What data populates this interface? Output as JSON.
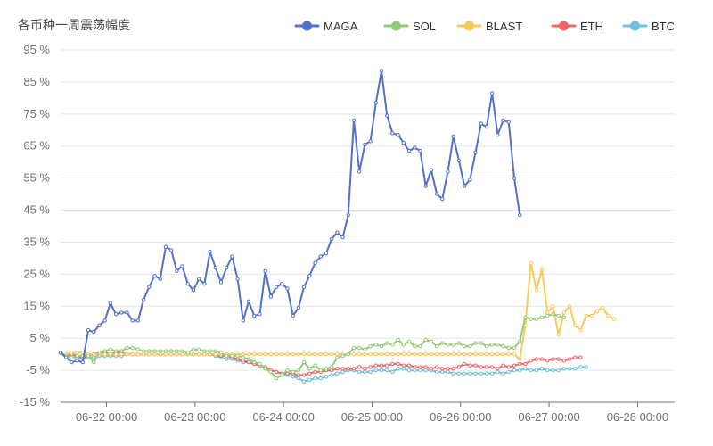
{
  "chart_data": {
    "type": "line",
    "title": "各币种一周震荡幅度",
    "y_unit": "%",
    "ylim": [
      -15,
      95
    ],
    "y_ticks": [
      -15,
      -5,
      5,
      15,
      25,
      35,
      45,
      55,
      65,
      75,
      85,
      95
    ],
    "y_tick_labels": [
      "-15 %",
      "-5 %",
      "5 %",
      "15 %",
      "25 %",
      "35 %",
      "45 %",
      "55 %",
      "65 %",
      "75 %",
      "85 %",
      "95 %"
    ],
    "x_tick_labels": [
      "06-22 00:00",
      "06-23 00:00",
      "06-24 00:00",
      "06-25 00:00",
      "06-26 00:00",
      "06-27 00:00",
      "06-28 00:00"
    ],
    "x_tick_positions": [
      8.3,
      24.3,
      40.3,
      56.3,
      72.3,
      88.3,
      104.3
    ],
    "x_count": 112,
    "grid": "horizontal",
    "legend_position": "top-right",
    "series": [
      {
        "name": "MAGA",
        "color": "#5470c6",
        "values": [
          0.5,
          -1.0,
          -2.5,
          -2.0,
          -2.5,
          7.5,
          7.0,
          9.0,
          10.5,
          16.0,
          12.5,
          13.0,
          13.0,
          10.5,
          10.5,
          17.0,
          21.0,
          24.5,
          23.5,
          33.5,
          32.5,
          26.0,
          27.5,
          22.0,
          20.0,
          23.5,
          22.0,
          32.0,
          27.0,
          22.5,
          27.0,
          30.5,
          23.5,
          10.5,
          16.5,
          12.0,
          12.5,
          26.0,
          18.0,
          21.0,
          22.0,
          20.5,
          12.0,
          14.5,
          21.0,
          24.5,
          28.5,
          30.5,
          31.5,
          36.0,
          38.0,
          36.5,
          43.5,
          73.0,
          57.0,
          65.5,
          66.5,
          78.5,
          88.5,
          74.5,
          69.0,
          68.5,
          66.0,
          63.5,
          64.5,
          63.5,
          52.5,
          57.5,
          50.0,
          48.5,
          57.0,
          68.0,
          60.5,
          52.5,
          54.5,
          63.0,
          72.0,
          71.0,
          81.5,
          68.5,
          73.0,
          72.5,
          55.0,
          43.5
        ]
      },
      {
        "name": "SOL",
        "color": "#91cc75",
        "values": [
          0.5,
          -0.5,
          -1.0,
          -0.5,
          -0.5,
          -0.5,
          -2.5,
          0.5,
          1.0,
          1.5,
          1.0,
          1.0,
          2.0,
          2.0,
          1.5,
          1.0,
          1.0,
          1.0,
          1.0,
          1.0,
          1.0,
          1.0,
          1.0,
          0.5,
          1.5,
          1.5,
          1.0,
          1.0,
          1.0,
          0.5,
          -0.5,
          -0.5,
          -0.5,
          -1.0,
          -1.5,
          -2.5,
          -3.0,
          -4.5,
          -5.5,
          -7.5,
          -6.5,
          -5.0,
          -5.5,
          -5.0,
          -2.5,
          -4.5,
          -3.5,
          -5.0,
          -4.5,
          -4.0,
          -1.0,
          -0.5,
          0.0,
          2.0,
          2.0,
          1.5,
          2.5,
          3.0,
          2.5,
          3.5,
          3.0,
          4.5,
          3.0,
          4.0,
          2.5,
          2.5,
          4.5,
          4.0,
          2.5,
          3.5,
          3.0,
          3.0,
          3.5,
          2.5,
          2.5,
          3.5,
          3.5,
          2.5,
          3.0,
          3.0,
          2.5,
          2.0,
          2.0,
          4.0,
          11.5,
          11.0,
          11.0,
          11.5,
          12.0,
          12.5,
          12.0,
          11.5
        ]
      },
      {
        "name": "BLAST",
        "color": "#fac858",
        "values": [
          0.5,
          0.0,
          0.5,
          0.5,
          0.5,
          0.0,
          0.0,
          0.0,
          0.0,
          0.0,
          0.0,
          0.0,
          0.0,
          0.0,
          0.0,
          0.0,
          0.0,
          0.0,
          0.0,
          0.0,
          0.0,
          0.0,
          0.0,
          0.0,
          0.0,
          0.0,
          0.0,
          0.0,
          0.0,
          0.0,
          0.0,
          0.0,
          0.0,
          0.0,
          0.0,
          0.0,
          0.0,
          0.0,
          0.0,
          0.0,
          0.0,
          0.0,
          0.0,
          0.0,
          0.0,
          0.0,
          0.0,
          0.0,
          0.0,
          0.0,
          0.0,
          0.0,
          0.0,
          0.0,
          0.0,
          0.0,
          0.0,
          0.0,
          0.0,
          0.0,
          0.0,
          0.0,
          0.0,
          0.0,
          0.0,
          0.0,
          0.0,
          0.0,
          0.0,
          0.0,
          0.0,
          0.0,
          0.0,
          0.0,
          0.0,
          0.0,
          0.0,
          0.0,
          0.0,
          0.0,
          0.0,
          0.0,
          0.0,
          -1.5,
          9.0,
          28.5,
          20.0,
          26.5,
          13.0,
          15.0,
          6.0,
          13.0,
          15.0,
          9.0,
          7.5,
          12.0,
          12.0,
          13.5,
          14.5,
          12.0,
          11.0
        ]
      },
      {
        "name": "ETH",
        "color": "#ee6666",
        "values": [
          0.5,
          -0.5,
          0.0,
          -0.5,
          -1.0,
          -0.5,
          0.0,
          0.5,
          0.5,
          0.0,
          0.5,
          0.5,
          0.0,
          0.0,
          0.0,
          0.0,
          0.0,
          0.0,
          0.0,
          0.0,
          0.0,
          0.0,
          0.0,
          0.0,
          0.0,
          0.0,
          0.0,
          0.0,
          0.0,
          -0.5,
          -0.5,
          -1.0,
          -1.5,
          -2.0,
          -2.5,
          -3.0,
          -3.5,
          -4.0,
          -5.0,
          -5.5,
          -6.0,
          -6.0,
          -6.0,
          -6.5,
          -6.5,
          -6.0,
          -5.5,
          -5.5,
          -5.0,
          -5.0,
          -4.5,
          -4.5,
          -4.5,
          -4.5,
          -4.0,
          -4.5,
          -4.0,
          -3.5,
          -3.5,
          -3.5,
          -3.0,
          -3.0,
          -3.5,
          -3.5,
          -4.0,
          -4.0,
          -4.0,
          -4.5,
          -4.0,
          -4.5,
          -4.5,
          -4.5,
          -4.0,
          -3.0,
          -3.5,
          -3.5,
          -4.0,
          -4.0,
          -4.0,
          -4.5,
          -3.5,
          -4.0,
          -3.5,
          -3.0,
          -3.0,
          -2.0,
          -1.5,
          -1.5,
          -2.0,
          -1.5,
          -1.5,
          -2.0,
          -1.5,
          -1.0,
          -1.0
        ]
      },
      {
        "name": "BTC",
        "color": "#73c0de",
        "values": [
          0.5,
          -0.5,
          -1.0,
          -1.0,
          -1.5,
          -1.0,
          -1.0,
          -0.5,
          -0.5,
          -0.5,
          -0.5,
          -0.5,
          0.0,
          0.0,
          0.0,
          0.0,
          0.0,
          0.0,
          0.0,
          0.0,
          0.0,
          0.0,
          0.0,
          0.0,
          0.0,
          0.0,
          0.0,
          0.0,
          -0.5,
          -1.0,
          -1.5,
          -1.5,
          -2.0,
          -2.5,
          -2.5,
          -3.0,
          -3.5,
          -4.0,
          -5.0,
          -5.5,
          -6.0,
          -6.5,
          -7.0,
          -7.5,
          -8.5,
          -8.0,
          -7.5,
          -7.5,
          -7.0,
          -6.5,
          -6.0,
          -5.5,
          -5.0,
          -5.0,
          -5.5,
          -5.5,
          -5.5,
          -5.0,
          -5.0,
          -5.0,
          -5.5,
          -4.5,
          -4.5,
          -5.0,
          -5.0,
          -5.0,
          -5.0,
          -5.0,
          -5.5,
          -5.5,
          -5.5,
          -6.0,
          -6.0,
          -6.0,
          -6.0,
          -6.0,
          -6.0,
          -6.0,
          -6.0,
          -5.5,
          -6.0,
          -5.5,
          -5.0,
          -5.0,
          -4.5,
          -5.0,
          -5.0,
          -4.5,
          -5.0,
          -5.0,
          -5.0,
          -4.5,
          -4.5,
          -4.5,
          -4.0,
          -4.0
        ]
      }
    ]
  }
}
